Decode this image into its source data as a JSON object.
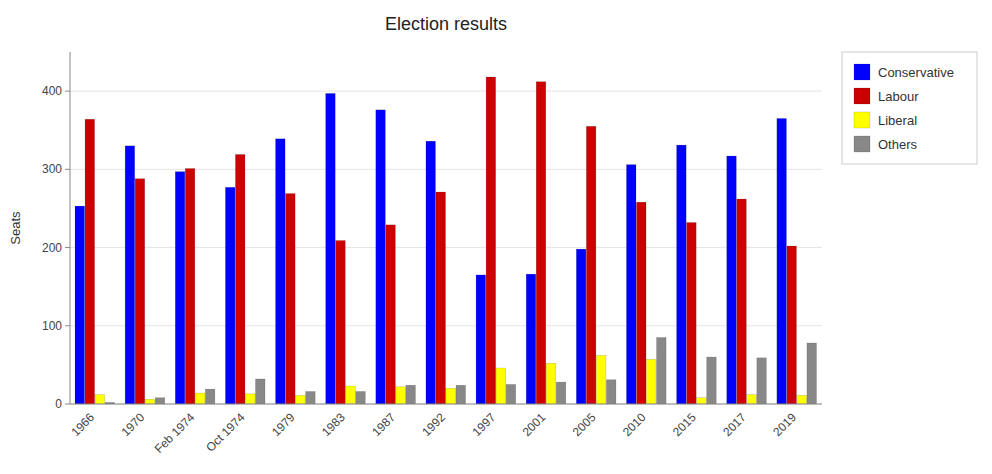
{
  "chart_data": {
    "type": "bar",
    "title": "Election results",
    "y_label": "Seats",
    "categories": [
      "1966",
      "1970",
      "Feb 1974",
      "Oct 1974",
      "1979",
      "1983",
      "1987",
      "1992",
      "1997",
      "2001",
      "2005",
      "2010",
      "2015",
      "2017",
      "2019"
    ],
    "series": [
      {
        "name": "Conservative",
        "color": "#0000ff",
        "values": [
          253,
          330,
          297,
          277,
          339,
          397,
          376,
          336,
          165,
          166,
          198,
          306,
          331,
          317,
          365
        ]
      },
      {
        "name": "Labour",
        "color": "#cc0000",
        "values": [
          364,
          288,
          301,
          319,
          269,
          209,
          229,
          271,
          418,
          412,
          355,
          258,
          232,
          262,
          202
        ]
      },
      {
        "name": "Liberal",
        "color": "#ffff00",
        "values": [
          12,
          6,
          14,
          13,
          11,
          23,
          22,
          20,
          46,
          52,
          62,
          57,
          8,
          12,
          11
        ]
      },
      {
        "name": "Others",
        "color": "#888888",
        "values": [
          2,
          8,
          19,
          32,
          16,
          16,
          24,
          24,
          25,
          28,
          31,
          85,
          60,
          59,
          78
        ]
      }
    ],
    "ylim": [
      0,
      450
    ],
    "yticks": [
      0,
      100,
      200,
      300,
      400
    ],
    "grid": true,
    "legend": "right"
  }
}
